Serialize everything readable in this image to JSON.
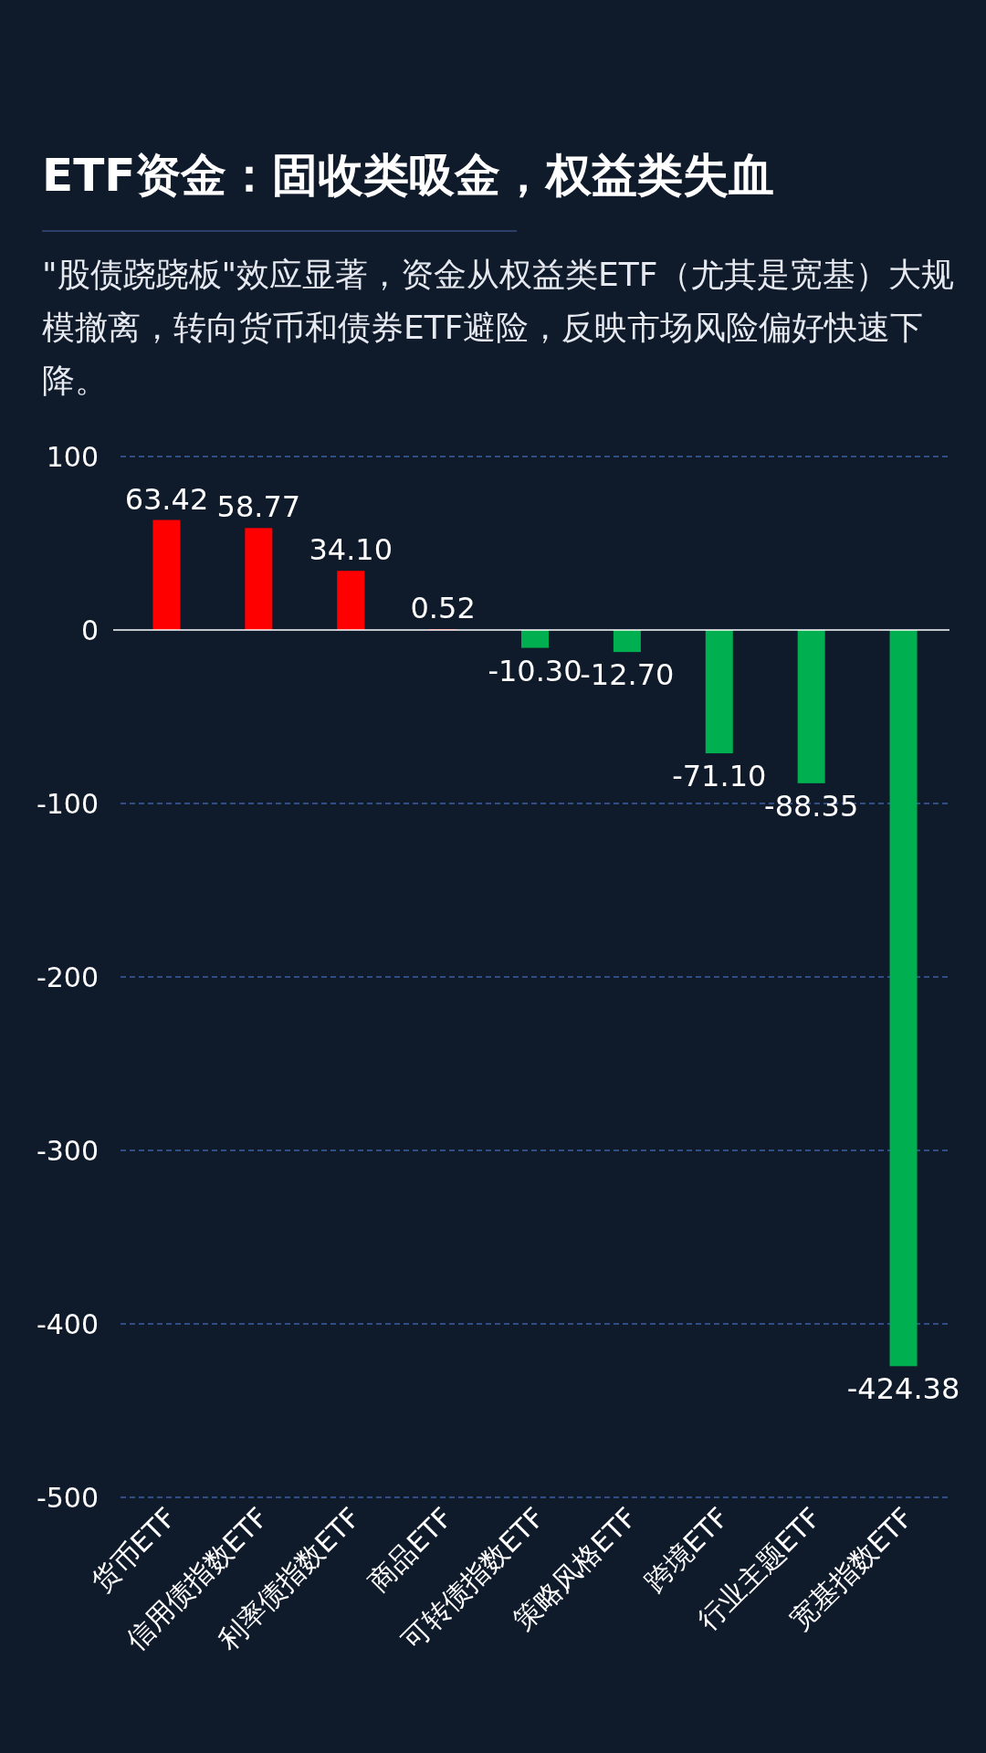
{
  "chart_data": {
    "type": "bar",
    "title": "ETF资金：固收类吸金，权益类失血",
    "subtitle": "\"股债跷跷板\"效应显著，资金从权益类ETF（尤其是宽基）大规模撤离，转向货币和债券ETF避险，反映市场风险偏好快速下降。",
    "categories": [
      "货币ETF",
      "信用债指数ETF",
      "利率债指数ETF",
      "商品ETF",
      "可转债指数ETF",
      "策略风格ETF",
      "跨境ETF",
      "行业主题ETF",
      "宽基指数ETF"
    ],
    "values": [
      63.42,
      58.77,
      34.1,
      0.52,
      -10.3,
      -12.7,
      -71.1,
      -88.35,
      -424.38
    ],
    "value_labels": [
      "63.42",
      "58.77",
      "34.10",
      "0.52",
      "-10.30",
      "-12.70",
      "-71.10",
      "-88.35",
      "-424.38"
    ],
    "colors": [
      "#ff0000",
      "#ff0000",
      "#ff0000",
      "#ff0000",
      "#00b050",
      "#00b050",
      "#00b050",
      "#00b050",
      "#00b050"
    ],
    "ylim": [
      -500,
      100
    ],
    "yticks": [
      -500,
      -400,
      -300,
      -200,
      -100,
      0,
      100
    ],
    "grid": "y"
  }
}
